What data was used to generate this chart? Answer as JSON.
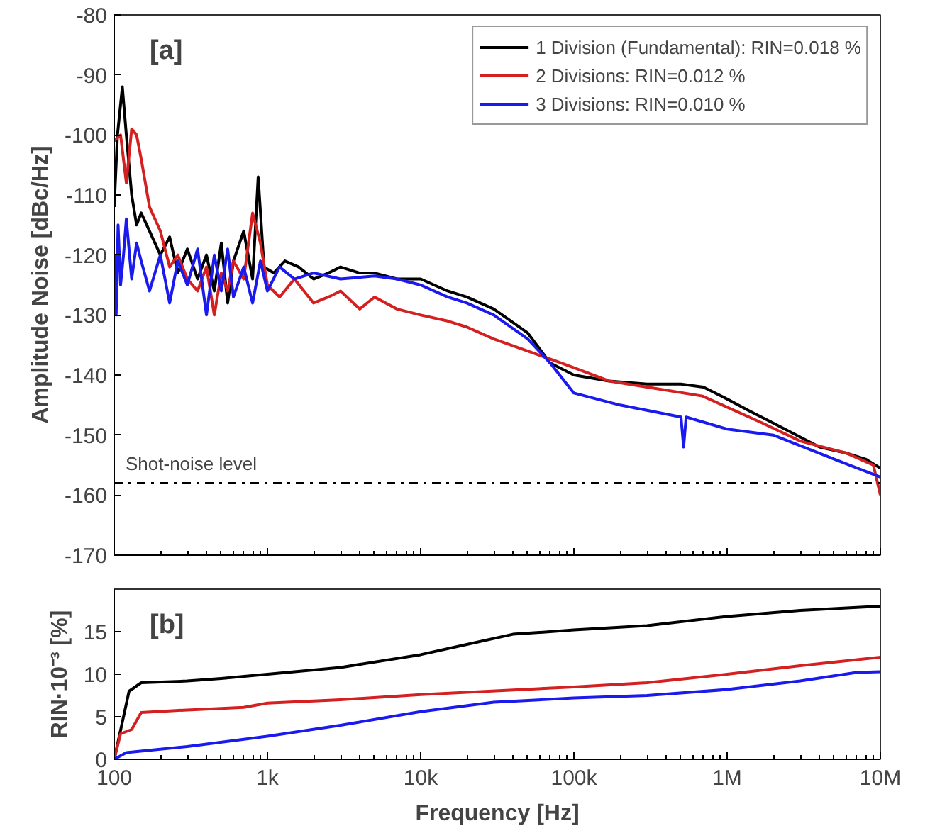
{
  "chart_data": [
    {
      "type": "line",
      "ylabel": "Amplitude Noise [dBc/Hz]",
      "annotations": [
        "[a]"
      ],
      "legend": "top right",
      "tick_labels": "y",
      "grid": false,
      "log": "x",
      "line_style": "solid",
      "marker": "none",
      "xlim": [
        100,
        10000000
      ],
      "ylim": [
        -170,
        -80
      ],
      "xticks": [
        {
          "value": 100,
          "label": null
        },
        {
          "value": 1000,
          "label": null
        },
        {
          "value": 10000,
          "label": null
        },
        {
          "value": 100000,
          "label": null
        },
        {
          "value": 1000000,
          "label": null
        },
        {
          "value": 10000000,
          "label": null
        }
      ],
      "yticks": [
        -170,
        -160,
        -150,
        -140,
        -130,
        -120,
        -110,
        -100,
        -90,
        -80
      ],
      "ref_lines": [
        {
          "axis": "y",
          "value": -158,
          "label": "Shot-noise level",
          "color": "#000000",
          "line_style": "dashdot"
        }
      ],
      "series": [
        {
          "name": "1 Division (Fundamental): RIN=0.018 %",
          "color": "#000000",
          "x": [
            100,
            105,
            113,
            120,
            130,
            140,
            150,
            170,
            200,
            230,
            260,
            300,
            350,
            400,
            450,
            500,
            550,
            600,
            700,
            800,
            870,
            950,
            1100,
            1300,
            1600,
            2000,
            2500,
            3000,
            4000,
            5000,
            7000,
            10000,
            15000,
            20000,
            30000,
            50000,
            70000,
            100000,
            170000,
            300000,
            500000,
            700000,
            1000000,
            1400000,
            2000000,
            4000000,
            6000000,
            8000000,
            10000000
          ],
          "values": [
            -112,
            -100,
            -92,
            -100,
            -110,
            -115,
            -113,
            -116,
            -120,
            -117,
            -123,
            -119,
            -124,
            -120,
            -126,
            -118,
            -128,
            -121,
            -116,
            -124,
            -107,
            -122,
            -123,
            -121,
            -122,
            -124,
            -123,
            -122,
            -123,
            -123,
            -124,
            -124,
            -126,
            -127,
            -129,
            -133,
            -138,
            -140,
            -141,
            -141.5,
            -141.5,
            -142,
            -144,
            -146,
            -148,
            -152,
            -153,
            -154,
            -155.5
          ]
        },
        {
          "name": "2 Divisions: RIN=0.012 %",
          "color": "#d42020",
          "x": [
            100,
            110,
            120,
            130,
            140,
            150,
            170,
            200,
            230,
            260,
            300,
            350,
            400,
            450,
            500,
            550,
            600,
            700,
            800,
            900,
            1000,
            1200,
            1500,
            2000,
            2500,
            3000,
            4000,
            5000,
            7000,
            10000,
            15000,
            20000,
            30000,
            50000,
            83000,
            170000,
            300000,
            690000,
            1700000,
            3000000,
            6000000,
            9000000,
            10000000
          ],
          "values": [
            -101,
            -100,
            -108,
            -99,
            -100,
            -104,
            -112,
            -116,
            -122,
            -120,
            -124,
            -126,
            -122,
            -130,
            -123,
            -126,
            -121,
            -124,
            -113,
            -118,
            -125,
            -127,
            -124,
            -128,
            -127,
            -126,
            -129,
            -127,
            -129,
            -130,
            -131,
            -132,
            -134,
            -136,
            -138,
            -141,
            -142,
            -143.5,
            -148,
            -151,
            -153,
            -155,
            -160
          ]
        },
        {
          "name": "3 Divisions: RIN=0.010 %",
          "color": "#1a1aee",
          "x": [
            100,
            103,
            106,
            110,
            115,
            120,
            130,
            140,
            150,
            170,
            200,
            230,
            260,
            300,
            350,
            400,
            450,
            500,
            550,
            600,
            700,
            800,
            900,
            1000,
            1200,
            1500,
            2000,
            3000,
            5000,
            7000,
            10000,
            15000,
            20000,
            30000,
            50000,
            70000,
            100000,
            200000,
            500000,
            520000,
            540000,
            1000000,
            2000000,
            5000000,
            10000000
          ],
          "values": [
            -120,
            -130,
            -115,
            -125,
            -120,
            -114,
            -124,
            -118,
            -121,
            -126,
            -120,
            -128,
            -121,
            -125,
            -119,
            -130,
            -120,
            -126,
            -119,
            -127,
            -122,
            -128,
            -121,
            -126,
            -122,
            -124,
            -123,
            -124,
            -123.5,
            -124,
            -125,
            -127,
            -128,
            -130,
            -134,
            -138,
            -143,
            -145,
            -147,
            -152,
            -147,
            -149,
            -150,
            -154,
            -157
          ]
        }
      ]
    },
    {
      "type": "line",
      "ylabel": "RIN·10⁻³ [%]",
      "xlabel": "Frequency [Hz]",
      "annotations": [
        "[b]"
      ],
      "grid": false,
      "log": "x",
      "line_style": "solid",
      "marker": "none",
      "xlim": [
        100,
        10000000
      ],
      "ylim": [
        0,
        20
      ],
      "xticks": [
        {
          "value": 100,
          "label": "100"
        },
        {
          "value": 1000,
          "label": "1k"
        },
        {
          "value": 10000,
          "label": "10k"
        },
        {
          "value": 100000,
          "label": "100k"
        },
        {
          "value": 1000000,
          "label": "1M"
        },
        {
          "value": 10000000,
          "label": "10M"
        }
      ],
      "yticks": [
        0,
        5,
        10,
        15
      ],
      "series": [
        {
          "color": "#000000",
          "x": [
            100,
            115,
            125,
            150,
            300,
            500,
            1000,
            3000,
            10000,
            20000,
            40000,
            100000,
            300000,
            1000000,
            3000000,
            10000000
          ],
          "values": [
            0,
            5,
            8,
            9,
            9.2,
            9.5,
            10,
            10.8,
            12.3,
            13.5,
            14.7,
            15.2,
            15.7,
            16.8,
            17.5,
            18
          ]
        },
        {
          "color": "#d42020",
          "x": [
            100,
            110,
            130,
            150,
            300,
            700,
            1000,
            3000,
            10000,
            100000,
            300000,
            1000000,
            3000000,
            10000000
          ],
          "values": [
            0,
            3,
            3.5,
            5.5,
            5.8,
            6.1,
            6.6,
            7,
            7.6,
            8.5,
            9,
            10,
            11,
            12
          ]
        },
        {
          "color": "#1a1aee",
          "x": [
            100,
            120,
            300,
            1000,
            3000,
            10000,
            30000,
            100000,
            300000,
            1000000,
            3000000,
            7000000,
            10000000
          ],
          "values": [
            0,
            0.8,
            1.5,
            2.7,
            4,
            5.6,
            6.7,
            7.2,
            7.5,
            8.2,
            9.2,
            10.2,
            10.3
          ]
        }
      ]
    }
  ]
}
